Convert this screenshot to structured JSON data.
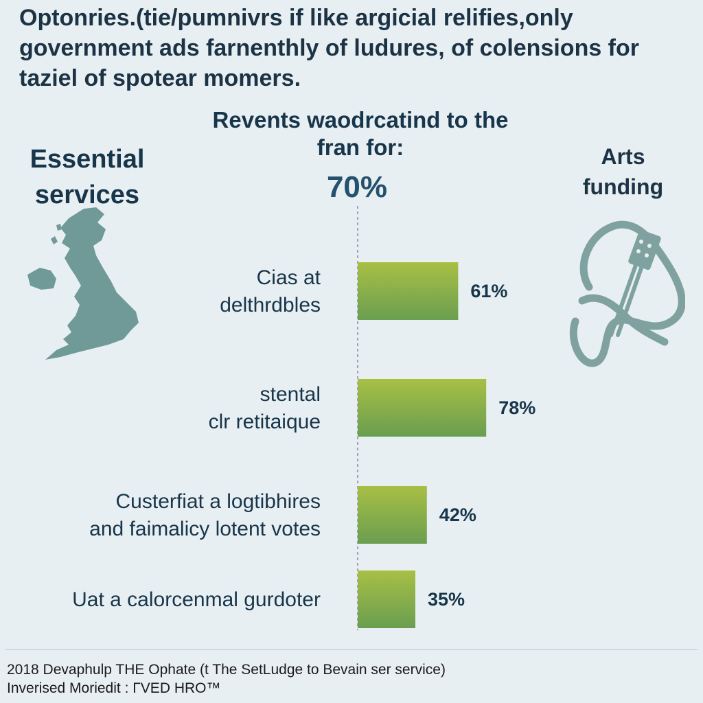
{
  "headline": "Optonries.(tie/pumnivrs if like argicial relifies,only government ads farnenthly of ludures, of colensions for taziel of spotear momers.",
  "left_panel": {
    "label": "Essential services",
    "icon": "uk-map-icon"
  },
  "right_panel": {
    "label": "Arts funding",
    "icon": "guitar-icon"
  },
  "chart_data": {
    "type": "bar",
    "subtitle": "Revents waodrcatind to the fran for:",
    "headline_value": "70%",
    "categories": [
      "Cias at delthrdbles",
      "stental clr retitaique",
      "Custerfiat a logtibhires and faimalicy lotent votes",
      "Uat a calorcenmal gurdoter"
    ],
    "category_lines": [
      [
        "Cias at",
        "delthrdbles"
      ],
      [
        "stental",
        "clr retitaique"
      ],
      [
        "Custerfiat a logtibhires",
        "and faimalicy lotent votes"
      ],
      [
        "Uat a calorcenmal gurdoter"
      ]
    ],
    "values": [
      61,
      78,
      42,
      35
    ],
    "value_labels": [
      "61%",
      "78%",
      "42%",
      "35%"
    ],
    "reference_line": 70,
    "colors": {
      "bar_top": "#a8bf45",
      "bar_bottom": "#6a9e50",
      "text": "#17354b",
      "reference": "#9aa6ad"
    }
  },
  "footer": {
    "line1": "2018 Devaphulp THE Ophate (t The SetLudge to Bevain ser service)",
    "line2": "Inverised Moriedit : ΓVED HRO™"
  }
}
